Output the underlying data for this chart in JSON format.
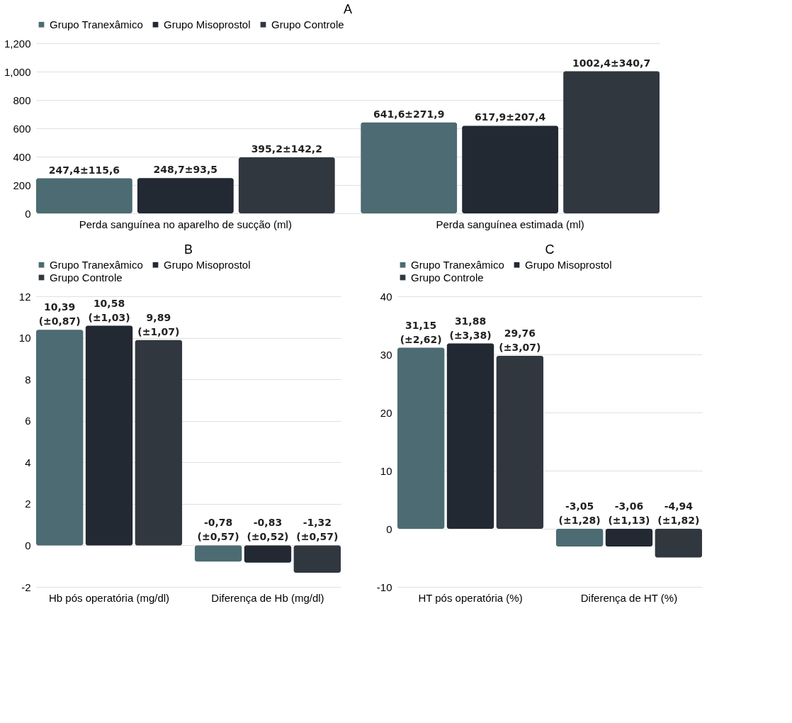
{
  "chart_data": [
    {
      "type": "bar",
      "title": "A",
      "categories": [
        "Perda sanguínea no aparelho de sucção (ml)",
        "Perda sanguínea estimada (ml)"
      ],
      "series": [
        {
          "name": "Grupo Tranexâmico",
          "color": "#4d6b72",
          "values": [
            247.4,
            641.6
          ],
          "value_labels": [
            "247,4±115,6",
            "641,6±271,9"
          ]
        },
        {
          "name": "Grupo Misoprostol",
          "color": "#222932",
          "values": [
            248.7,
            617.9
          ],
          "value_labels": [
            "248,7±93,5",
            "617,9±207,4"
          ]
        },
        {
          "name": "Grupo Controle",
          "color": "#31373f",
          "values": [
            395.2,
            1002.4
          ],
          "value_labels": [
            "395,2±142,2",
            "1002,4±340,7"
          ]
        }
      ],
      "ylim": [
        0,
        1200
      ],
      "yticks": [
        0,
        200,
        400,
        600,
        800,
        {
          "value": 1000,
          "label": "1,000"
        },
        {
          "value": 1200,
          "label": "1,200"
        }
      ],
      "grid": "y",
      "legend": "top"
    },
    {
      "type": "bar",
      "title": "B",
      "categories": [
        "Hb pós operatória (mg/dl)",
        "Diferença de Hb (mg/dl)"
      ],
      "series": [
        {
          "name": "Grupo Tranexâmico",
          "color": "#4d6b72",
          "values": [
            10.39,
            -0.78
          ],
          "value_labels": [
            "10,39\n(±0,87)",
            "-0,78\n(±0,57)"
          ]
        },
        {
          "name": "Grupo Misoprostol",
          "color": "#222932",
          "values": [
            10.58,
            -0.83
          ],
          "value_labels": [
            "10,58\n(±1,03)",
            "-0,83\n(±0,52)"
          ]
        },
        {
          "name": "Grupo Controle",
          "color": "#31373f",
          "values": [
            9.89,
            -1.32
          ],
          "value_labels": [
            "9,89\n(±1,07)",
            "-1,32\n(±0,57)"
          ]
        }
      ],
      "ylim": [
        -2,
        12
      ],
      "yticks": [
        -2,
        0,
        2,
        4,
        6,
        8,
        10,
        12
      ],
      "grid": "y",
      "legend": "top"
    },
    {
      "type": "bar",
      "title": "C",
      "categories": [
        "HT pós operatória (%)",
        "Diferença de HT (%)"
      ],
      "series": [
        {
          "name": "Grupo Tranexâmico",
          "color": "#4d6b72",
          "values": [
            31.15,
            -3.05
          ],
          "value_labels": [
            "31,15\n(±2,62)",
            "-3,05\n(±1,28)"
          ]
        },
        {
          "name": "Grupo Misoprostol",
          "color": "#222932",
          "values": [
            31.88,
            -3.06
          ],
          "value_labels": [
            "31,88\n(±3,38)",
            "-3,06\n(±1,13)"
          ]
        },
        {
          "name": "Grupo Controle",
          "color": "#31373f",
          "values": [
            29.76,
            -4.94
          ],
          "value_labels": [
            "29,76\n(±3,07)",
            "-4,94\n(±1,82)"
          ]
        }
      ],
      "ylim": [
        -10,
        40
      ],
      "yticks": [
        -10,
        0,
        10,
        20,
        30,
        40
      ],
      "grid": "y",
      "legend": "top"
    }
  ]
}
